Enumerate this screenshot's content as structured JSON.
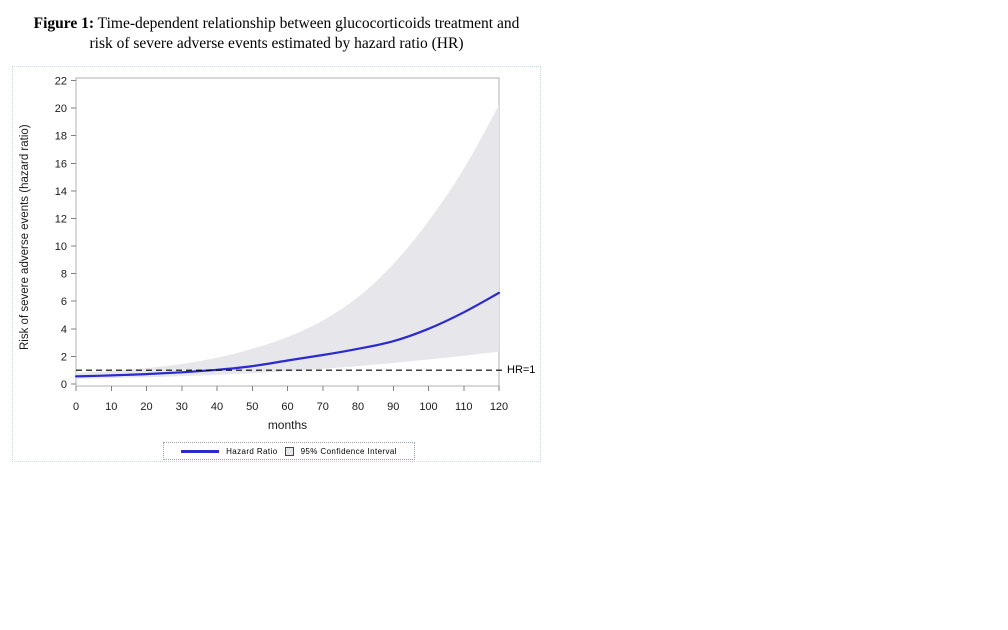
{
  "figure": {
    "label": "Figure 1:",
    "title_line1": "Time-dependent relationship between glucocorticoids treatment and",
    "title_line2": "risk of severe adverse events estimated by hazard ratio (HR)"
  },
  "legend": {
    "items": [
      {
        "label": "Hazard Ratio",
        "swatch": "blue-line"
      },
      {
        "label": "95% Confidence Interval",
        "swatch": "gray-box"
      }
    ]
  },
  "colors": {
    "hazard_line": "#2a2ad0",
    "band": "#e6e6eb",
    "reference_line": "#000000",
    "plot_border": "#b0b0b0",
    "tick": "#808080",
    "tick_label": "#1a1a1a",
    "outer_dotted_border": "#c9d6de"
  },
  "chart_data": {
    "type": "line",
    "title": "Figure 1: Time-dependent relationship between glucocorticoids treatment and risk of severe adverse events estimated by hazard ratio (HR)",
    "xlabel": "months",
    "ylabel": "Risk of severe adverse events (hazard ratio)",
    "xlim": [
      0,
      120
    ],
    "ylim": [
      0,
      22
    ],
    "x_ticks": [
      0,
      10,
      20,
      30,
      40,
      50,
      60,
      70,
      80,
      90,
      100,
      110,
      120
    ],
    "y_ticks": [
      0,
      2,
      4,
      6,
      8,
      10,
      12,
      14,
      16,
      18,
      20,
      22
    ],
    "grid": false,
    "legend_position": "bottom-center",
    "x": [
      0,
      10,
      20,
      30,
      40,
      50,
      60,
      70,
      80,
      90,
      100,
      110,
      120
    ],
    "series": [
      {
        "name": "Hazard Ratio",
        "values": [
          0.55,
          0.62,
          0.72,
          0.85,
          1.03,
          1.3,
          1.7,
          2.1,
          2.55,
          3.1,
          4.0,
          5.2,
          6.6
        ]
      },
      {
        "name": "95% CI upper bound",
        "values": [
          0.8,
          0.95,
          1.15,
          1.45,
          1.9,
          2.55,
          3.4,
          4.6,
          6.3,
          8.7,
          11.8,
          15.6,
          20.2
        ]
      },
      {
        "name": "95% CI lower bound",
        "values": [
          0.38,
          0.43,
          0.49,
          0.57,
          0.67,
          0.79,
          0.93,
          1.1,
          1.3,
          1.52,
          1.78,
          2.05,
          2.35
        ]
      }
    ],
    "reference_line": {
      "y": 1,
      "label": "HR=1",
      "style": "dashed"
    }
  }
}
